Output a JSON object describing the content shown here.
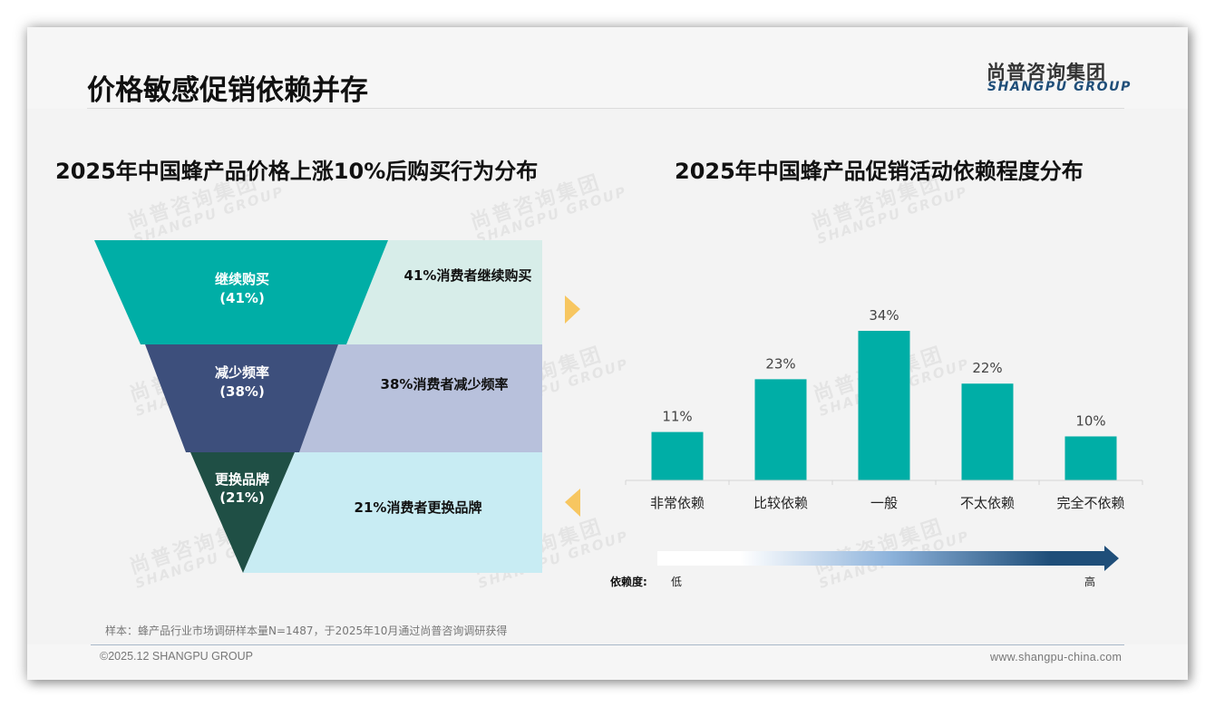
{
  "page": {
    "title": "价格敏感促销依赖并存",
    "logo": {
      "cn": "尚普咨询集团",
      "en": "SHANGPU GROUP"
    }
  },
  "watermark": {
    "cn": "尚普咨询集团",
    "en": "SHANGPU GROUP"
  },
  "left_panel": {
    "title": "2025年中国蜂产品价格上涨10%后购买行为分布",
    "funnel": [
      {
        "label": "继续购买",
        "pct": "(41%)",
        "note": "41%消费者继续购买",
        "color": "#00aea6",
        "band_color": "#d7ede9"
      },
      {
        "label": "减少频率",
        "pct": "(38%)",
        "note": "38%消费者减少频率",
        "color": "#3d4f7c",
        "band_color": "#b8c1dc"
      },
      {
        "label": "更换品牌",
        "pct": "(21%)",
        "note": "21%消费者更换品牌",
        "color": "#1f4f45",
        "band_color": "#c8ecf3"
      }
    ],
    "arrow_color": "#f7c660"
  },
  "right_panel": {
    "title": "2025年中国蜂产品促销活动依赖程度分布",
    "scale": {
      "label": "依赖度:",
      "low": "低",
      "high": "高"
    }
  },
  "chart_data": [
    {
      "type": "table",
      "title": "2025年中国蜂产品价格上涨10%后购买行为分布",
      "categories": [
        "继续购买",
        "减少频率",
        "更换品牌"
      ],
      "values": [
        41,
        38,
        21
      ],
      "unit": "%",
      "annotations": [
        "41%消费者继续购买",
        "38%消费者减少频率",
        "21%消费者更换品牌"
      ]
    },
    {
      "type": "bar",
      "title": "2025年中国蜂产品促销活动依赖程度分布",
      "categories": [
        "非常依赖",
        "比较依赖",
        "一般",
        "不太依赖",
        "完全不依赖"
      ],
      "values": [
        11,
        23,
        34,
        22,
        10
      ],
      "value_labels": [
        "11%",
        "23%",
        "34%",
        "22%",
        "10%"
      ],
      "xlabel": "",
      "ylabel": "",
      "ylim": [
        0,
        40
      ],
      "grid": false,
      "bar_color": "#00aea6"
    }
  ],
  "footer": {
    "note": "样本：蜂产品行业市场调研样本量N=1487，于2025年10月通过尚普咨询调研获得",
    "copyright": "©2025.12 SHANGPU GROUP",
    "website": "www.shangpu-china.com"
  }
}
